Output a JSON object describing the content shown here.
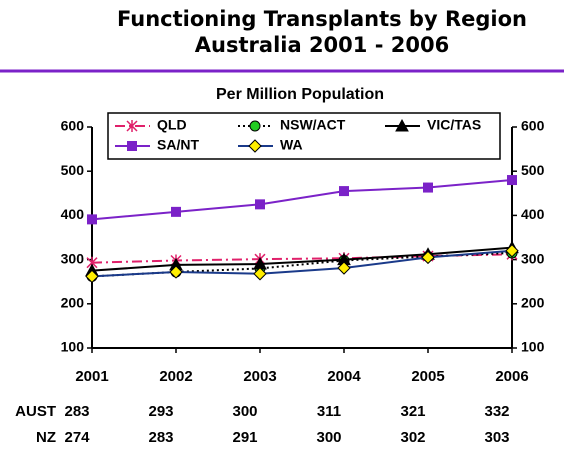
{
  "chart_data": {
    "type": "line",
    "title": "Functioning Transplants by Region",
    "subtitle": "Australia  2001 - 2006",
    "units_label": "Per Million Population",
    "categories": [
      "2001",
      "2002",
      "2003",
      "2004",
      "2005",
      "2006"
    ],
    "ylim": [
      100,
      600
    ],
    "yticks": [
      100,
      200,
      300,
      400,
      500,
      600
    ],
    "y2lim": [
      100,
      600
    ],
    "y2ticks": [
      100,
      200,
      300,
      400,
      500,
      600
    ],
    "grid": false,
    "legend": "top",
    "series": [
      {
        "name": "QLD",
        "color": "#e0206a",
        "dash": "dash-dot",
        "marker": "star",
        "marker_color": "#e0206a",
        "values": [
          293,
          298,
          301,
          303,
          308,
          312
        ]
      },
      {
        "name": "NSW/ACT",
        "color": "#000000",
        "dash": "dot",
        "marker": "circle",
        "marker_color": "#22cc22",
        "values": [
          262,
          272,
          280,
          298,
          307,
          315
        ]
      },
      {
        "name": "VIC/TAS",
        "color": "#000000",
        "dash": "solid",
        "marker": "triangle",
        "marker_color": "#000000",
        "values": [
          275,
          288,
          290,
          300,
          312,
          327
        ]
      },
      {
        "name": "SA/NT",
        "color": "#7b22c8",
        "dash": "solid",
        "marker": "square",
        "marker_color": "#7b22c8",
        "values": [
          391,
          408,
          425,
          455,
          463,
          480
        ]
      },
      {
        "name": "WA",
        "color": "#1a3a8a",
        "dash": "solid",
        "marker": "diamond",
        "marker_color": "#ffee00",
        "values": [
          262,
          272,
          268,
          281,
          305,
          320
        ]
      }
    ],
    "table": {
      "rows": [
        {
          "label": "AUST",
          "values": [
            283,
            293,
            300,
            311,
            321,
            332
          ]
        },
        {
          "label": "NZ",
          "values": [
            274,
            283,
            291,
            300,
            302,
            303
          ]
        }
      ]
    }
  }
}
